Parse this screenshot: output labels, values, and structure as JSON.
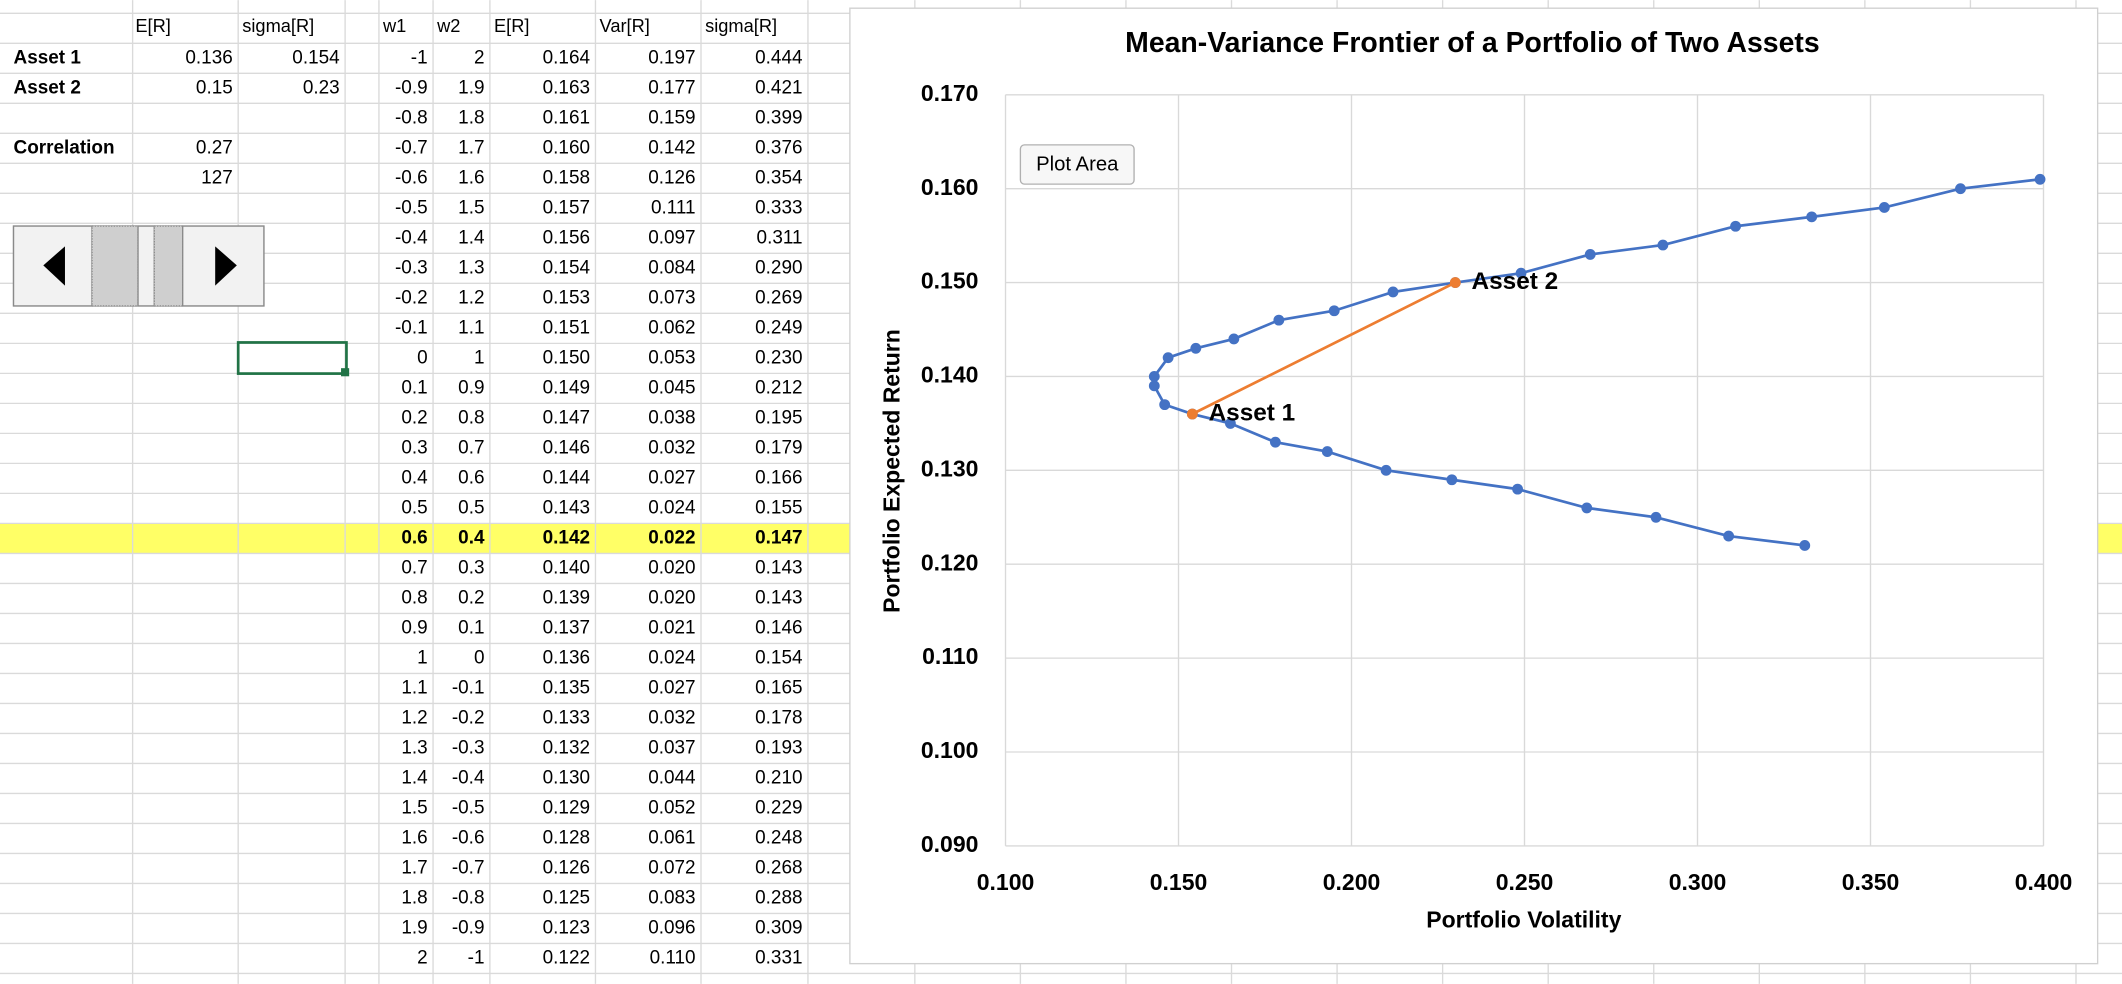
{
  "sheet": {
    "headers": [
      "E[R]",
      "sigma[R]",
      "w1",
      "w2",
      "E[R]",
      "Var[R]",
      "sigma[R]"
    ],
    "assets": [
      [
        "Asset 1",
        "0.136",
        "0.154"
      ],
      [
        "Asset 2",
        "0.15",
        "0.23"
      ]
    ],
    "correlation": {
      "label": "Correlation",
      "value": "0.27"
    },
    "scroll_value": "127",
    "highlight_row": 16,
    "rows": [
      [
        "-1",
        "2",
        "0.164",
        "0.197",
        "0.444"
      ],
      [
        "-0.9",
        "1.9",
        "0.163",
        "0.177",
        "0.421"
      ],
      [
        "-0.8",
        "1.8",
        "0.161",
        "0.159",
        "0.399"
      ],
      [
        "-0.7",
        "1.7",
        "0.160",
        "0.142",
        "0.376"
      ],
      [
        "-0.6",
        "1.6",
        "0.158",
        "0.126",
        "0.354"
      ],
      [
        "-0.5",
        "1.5",
        "0.157",
        "0.111",
        "0.333"
      ],
      [
        "-0.4",
        "1.4",
        "0.156",
        "0.097",
        "0.311"
      ],
      [
        "-0.3",
        "1.3",
        "0.154",
        "0.084",
        "0.290"
      ],
      [
        "-0.2",
        "1.2",
        "0.153",
        "0.073",
        "0.269"
      ],
      [
        "-0.1",
        "1.1",
        "0.151",
        "0.062",
        "0.249"
      ],
      [
        "0",
        "1",
        "0.150",
        "0.053",
        "0.230"
      ],
      [
        "0.1",
        "0.9",
        "0.149",
        "0.045",
        "0.212"
      ],
      [
        "0.2",
        "0.8",
        "0.147",
        "0.038",
        "0.195"
      ],
      [
        "0.3",
        "0.7",
        "0.146",
        "0.032",
        "0.179"
      ],
      [
        "0.4",
        "0.6",
        "0.144",
        "0.027",
        "0.166"
      ],
      [
        "0.5",
        "0.5",
        "0.143",
        "0.024",
        "0.155"
      ],
      [
        "0.6",
        "0.4",
        "0.142",
        "0.022",
        "0.147"
      ],
      [
        "0.7",
        "0.3",
        "0.140",
        "0.020",
        "0.143"
      ],
      [
        "0.8",
        "0.2",
        "0.139",
        "0.020",
        "0.143"
      ],
      [
        "0.9",
        "0.1",
        "0.137",
        "0.021",
        "0.146"
      ],
      [
        "1",
        "0",
        "0.136",
        "0.024",
        "0.154"
      ],
      [
        "1.1",
        "-0.1",
        "0.135",
        "0.027",
        "0.165"
      ],
      [
        "1.2",
        "-0.2",
        "0.133",
        "0.032",
        "0.178"
      ],
      [
        "1.3",
        "-0.3",
        "0.132",
        "0.037",
        "0.193"
      ],
      [
        "1.4",
        "-0.4",
        "0.130",
        "0.044",
        "0.210"
      ],
      [
        "1.5",
        "-0.5",
        "0.129",
        "0.052",
        "0.229"
      ],
      [
        "1.6",
        "-0.6",
        "0.128",
        "0.061",
        "0.248"
      ],
      [
        "1.7",
        "-0.7",
        "0.126",
        "0.072",
        "0.268"
      ],
      [
        "1.8",
        "-0.8",
        "0.125",
        "0.083",
        "0.288"
      ],
      [
        "1.9",
        "-0.9",
        "0.123",
        "0.096",
        "0.309"
      ],
      [
        "2",
        "-1",
        "0.122",
        "0.110",
        "0.331"
      ]
    ]
  },
  "tooltip": "Plot Area",
  "chart_data": {
    "type": "scatter-line",
    "title": "Mean-Variance Frontier of a Portfolio of Two Assets",
    "x_label": "Portfolio Volatility",
    "y_label": "Portfolio Expected Return",
    "xlim": [
      0.1,
      0.4
    ],
    "ylim": [
      0.09,
      0.17
    ],
    "xticks": [
      {
        "value": 0.1,
        "label": "0.100"
      },
      {
        "value": 0.15,
        "label": "0.150"
      },
      {
        "value": 0.2,
        "label": "0.200"
      },
      {
        "value": 0.25,
        "label": "0.250"
      },
      {
        "value": 0.3,
        "label": "0.300"
      },
      {
        "value": 0.35,
        "label": "0.350"
      },
      {
        "value": 0.4,
        "label": "0.400"
      }
    ],
    "yticks": [
      {
        "value": 0.09,
        "label": "0.090"
      },
      {
        "value": 0.1,
        "label": "0.100"
      },
      {
        "value": 0.11,
        "label": "0.110"
      },
      {
        "value": 0.12,
        "label": "0.120"
      },
      {
        "value": 0.13,
        "label": "0.130"
      },
      {
        "value": 0.14,
        "label": "0.140"
      },
      {
        "value": 0.15,
        "label": "0.150"
      },
      {
        "value": 0.16,
        "label": "0.160"
      },
      {
        "value": 0.17,
        "label": "0.170"
      }
    ],
    "grid": true,
    "series": [
      {
        "color": "#4472c4",
        "x": [
          0.399,
          0.376,
          0.354,
          0.333,
          0.311,
          0.29,
          0.269,
          0.249,
          0.23,
          0.212,
          0.195,
          0.179,
          0.166,
          0.155,
          0.147,
          0.143,
          0.143,
          0.146,
          0.154,
          0.165,
          0.178,
          0.193,
          0.21,
          0.229,
          0.248,
          0.268,
          0.288,
          0.309,
          0.331
        ],
        "values": [
          0.161,
          0.16,
          0.158,
          0.157,
          0.156,
          0.154,
          0.153,
          0.151,
          0.15,
          0.149,
          0.147,
          0.146,
          0.144,
          0.143,
          0.142,
          0.14,
          0.139,
          0.137,
          0.136,
          0.135,
          0.133,
          0.132,
          0.13,
          0.129,
          0.128,
          0.126,
          0.125,
          0.123,
          0.122
        ]
      },
      {
        "color": "#ed7d31",
        "x": [
          0.154,
          0.23
        ],
        "values": [
          0.136,
          0.15
        ],
        "labels": [
          "Asset 1",
          "Asset 2"
        ]
      }
    ]
  }
}
